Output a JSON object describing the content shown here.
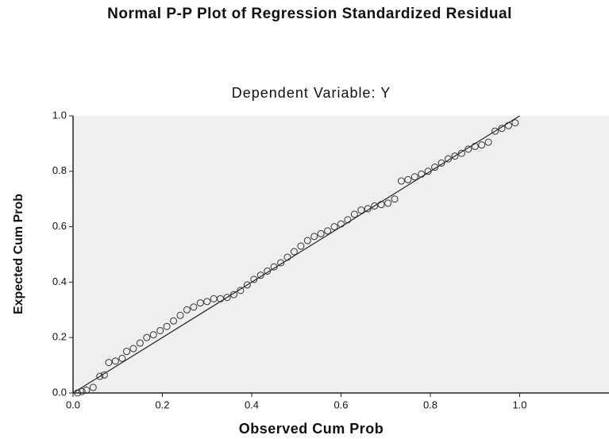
{
  "chart_data": {
    "type": "scatter",
    "title": "Normal P-P Plot of Regression Standardized Residual",
    "subtitle": "Dependent Variable: Y",
    "x_label": "Observed Cum Prob",
    "y_label": "Expected Cum Prob",
    "xlim": [
      0,
      1.2
    ],
    "ylim": [
      0,
      1
    ],
    "xticks": [
      {
        "value": 0,
        "label": "0.0"
      },
      {
        "value": 0.2,
        "label": "0.2"
      },
      {
        "value": 0.4,
        "label": "0.4"
      },
      {
        "value": 0.6,
        "label": "0.6"
      },
      {
        "value": 0.8,
        "label": "0.8"
      },
      {
        "value": 1,
        "label": "1.0"
      }
    ],
    "yticks": [
      {
        "value": 0,
        "label": "0.0"
      },
      {
        "value": 0.2,
        "label": "0.2"
      },
      {
        "value": 0.4,
        "label": "0.4"
      },
      {
        "value": 0.6,
        "label": "0.6"
      },
      {
        "value": 0.8,
        "label": "0.8"
      },
      {
        "value": 1,
        "label": "1.0"
      }
    ],
    "reference_line": true,
    "color": "#333333",
    "x": [
      0.01,
      0.02,
      0.03,
      0.045,
      0.06,
      0.07,
      0.08,
      0.095,
      0.11,
      0.12,
      0.135,
      0.15,
      0.165,
      0.18,
      0.195,
      0.21,
      0.225,
      0.24,
      0.255,
      0.27,
      0.285,
      0.3,
      0.315,
      0.33,
      0.345,
      0.36,
      0.375,
      0.39,
      0.405,
      0.42,
      0.435,
      0.45,
      0.465,
      0.48,
      0.495,
      0.51,
      0.525,
      0.54,
      0.555,
      0.57,
      0.585,
      0.6,
      0.615,
      0.63,
      0.645,
      0.66,
      0.675,
      0.69,
      0.705,
      0.72,
      0.735,
      0.75,
      0.765,
      0.78,
      0.795,
      0.81,
      0.825,
      0.84,
      0.855,
      0.87,
      0.885,
      0.9,
      0.915,
      0.93,
      0.945,
      0.96,
      0.975,
      0.99
    ],
    "values": [
      0,
      0.005,
      0.01,
      0.02,
      0.06,
      0.065,
      0.11,
      0.115,
      0.125,
      0.15,
      0.16,
      0.18,
      0.2,
      0.21,
      0.225,
      0.24,
      0.26,
      0.28,
      0.3,
      0.31,
      0.325,
      0.33,
      0.34,
      0.34,
      0.345,
      0.355,
      0.37,
      0.39,
      0.41,
      0.425,
      0.44,
      0.455,
      0.47,
      0.49,
      0.51,
      0.53,
      0.55,
      0.565,
      0.575,
      0.585,
      0.6,
      0.61,
      0.625,
      0.645,
      0.66,
      0.665,
      0.675,
      0.68,
      0.685,
      0.7,
      0.765,
      0.77,
      0.78,
      0.79,
      0.8,
      0.815,
      0.83,
      0.845,
      0.855,
      0.865,
      0.88,
      0.89,
      0.895,
      0.905,
      0.945,
      0.955,
      0.965,
      0.975
    ]
  }
}
